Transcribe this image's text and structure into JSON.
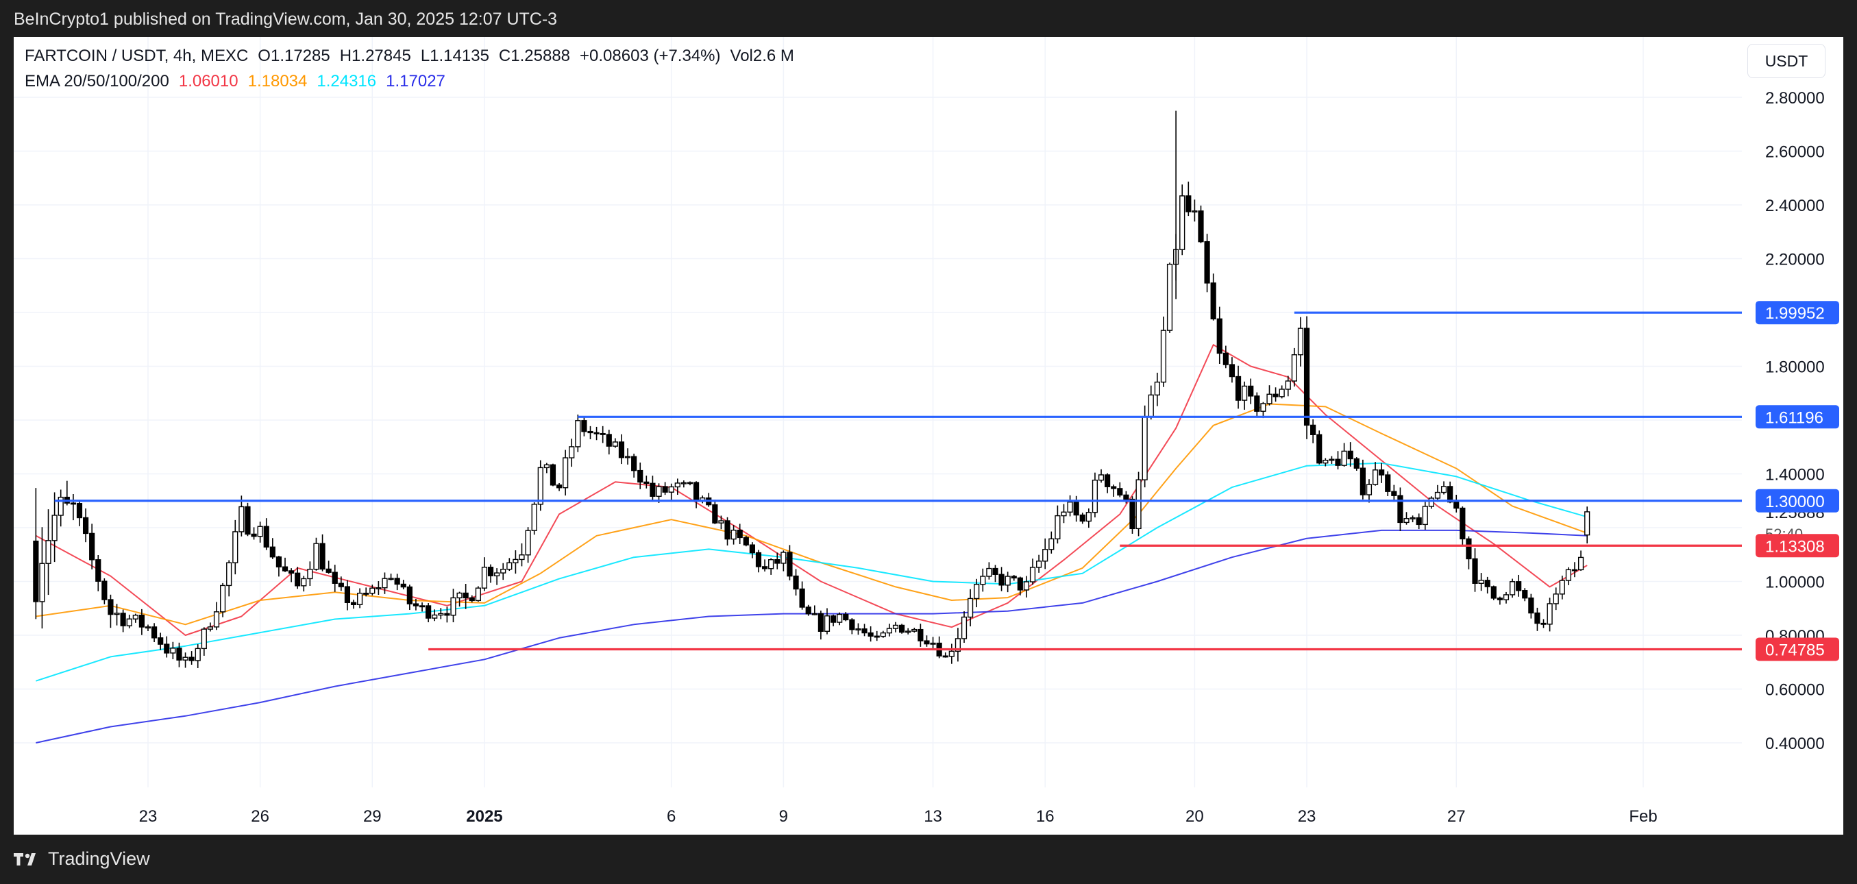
{
  "header": {
    "published": "BeInCrypto1 published on TradingView.com, Jan 30, 2025 12:07 UTC-3"
  },
  "legend": {
    "symbol": "FARTCOIN / USDT, 4h, MEXC",
    "open": "O1.17285",
    "high": "H1.27845",
    "low": "L1.14135",
    "close": "C1.25888",
    "change": "+0.08603 (+7.34%)",
    "volume": "Vol2.6 M",
    "ema_label": "EMA 20/50/100/200",
    "ema_values": [
      {
        "value": "1.06010",
        "color": "#f23645"
      },
      {
        "value": "1.18034",
        "color": "#ff9800"
      },
      {
        "value": "1.24316",
        "color": "#00e5ff"
      },
      {
        "value": "1.17027",
        "color": "#2a2ee8"
      }
    ]
  },
  "axis": {
    "unit": "USDT"
  },
  "footer": {
    "brand": "TradingView"
  },
  "chart_data": {
    "type": "candlestick",
    "title": "",
    "y_ticks": [
      "2.80000",
      "2.60000",
      "2.40000",
      "2.20000",
      "1.80000",
      "1.40000",
      "1.25888",
      "1.00000",
      "0.80000",
      "0.60000",
      "0.40000"
    ],
    "countdown": "52:40",
    "x_ticks": [
      {
        "label": "23",
        "x": "2024-12-23"
      },
      {
        "label": "26",
        "x": "2024-12-26"
      },
      {
        "label": "29",
        "x": "2024-12-29"
      },
      {
        "label": "2025",
        "x": "2025-01-01",
        "bold": true
      },
      {
        "label": "6",
        "x": "2025-01-06"
      },
      {
        "label": "9",
        "x": "2025-01-09"
      },
      {
        "label": "13",
        "x": "2025-01-13"
      },
      {
        "label": "16",
        "x": "2025-01-16"
      },
      {
        "label": "20",
        "x": "2025-01-20"
      },
      {
        "label": "23",
        "x": "2025-01-23"
      },
      {
        "label": "27",
        "x": "2025-01-27"
      },
      {
        "label": "Feb",
        "x": "2025-02-01"
      }
    ],
    "levels": [
      {
        "value": 1.99952,
        "label": "1.99952",
        "color": "#2962ff",
        "from": "2025-01-22T16:00"
      },
      {
        "value": 1.61196,
        "label": "1.61196",
        "color": "#2962ff",
        "from": "2025-01-03T12:00"
      },
      {
        "value": 1.3,
        "label": "1.30000",
        "color": "#2962ff",
        "from": "2024-12-20T12:00"
      },
      {
        "value": 1.13308,
        "label": "1.13308",
        "color": "#f23645",
        "from": "2025-01-18T00:00"
      },
      {
        "value": 0.74785,
        "label": "0.74785",
        "color": "#f23645",
        "from": "2024-12-30T12:00"
      }
    ],
    "last_price": {
      "value": 1.25888,
      "label": "1.25888"
    },
    "anchors": [
      [
        "2024-12-20T00:00",
        1.0,
        1.3
      ],
      [
        "2024-12-20T12:00",
        1.15,
        1.32
      ],
      [
        "2024-12-21T00:00",
        1.22,
        1.31
      ],
      [
        "2024-12-21T12:00",
        1.05,
        1.1
      ],
      [
        "2024-12-22T00:00",
        0.85,
        0.92
      ],
      [
        "2024-12-22T12:00",
        0.84,
        0.88
      ],
      [
        "2024-12-23T00:00",
        0.81,
        0.85
      ],
      [
        "2024-12-23T12:00",
        0.73,
        0.77
      ],
      [
        "2024-12-24T00:00",
        0.66,
        0.71
      ],
      [
        "2024-12-24T12:00",
        0.78,
        0.82
      ],
      [
        "2024-12-25T00:00",
        0.95,
        1.0
      ],
      [
        "2024-12-25T12:00",
        1.2,
        1.27
      ],
      [
        "2024-12-26T00:00",
        1.17,
        1.21
      ],
      [
        "2024-12-26T12:00",
        1.03,
        1.08
      ],
      [
        "2024-12-27T00:00",
        0.96,
        1.0
      ],
      [
        "2024-12-27T12:00",
        1.1,
        1.15
      ],
      [
        "2024-12-28T00:00",
        0.95,
        0.99
      ],
      [
        "2024-12-28T12:00",
        0.9,
        0.94
      ],
      [
        "2024-12-29T00:00",
        0.95,
        0.98
      ],
      [
        "2024-12-29T12:00",
        1.01,
        1.04
      ],
      [
        "2024-12-30T00:00",
        0.9,
        0.94
      ],
      [
        "2024-12-30T12:00",
        0.87,
        0.9
      ],
      [
        "2024-12-31T00:00",
        0.88,
        0.92
      ],
      [
        "2024-12-31T12:00",
        0.9,
        0.96
      ],
      [
        "2025-01-01T00:00",
        1.02,
        1.07
      ],
      [
        "2025-01-01T12:00",
        1.03,
        1.07
      ],
      [
        "2025-01-02T00:00",
        1.1,
        1.16
      ],
      [
        "2025-01-02T12:00",
        1.38,
        1.44
      ],
      [
        "2025-01-03T00:00",
        1.33,
        1.38
      ],
      [
        "2025-01-03T12:00",
        1.56,
        1.6
      ],
      [
        "2025-01-04T00:00",
        1.52,
        1.56
      ],
      [
        "2025-01-04T12:00",
        1.47,
        1.51
      ],
      [
        "2025-01-05T00:00",
        1.41,
        1.45
      ],
      [
        "2025-01-05T12:00",
        1.3,
        1.34
      ],
      [
        "2025-01-06T00:00",
        1.32,
        1.37
      ],
      [
        "2025-01-06T12:00",
        1.3,
        1.36
      ],
      [
        "2025-01-07T00:00",
        1.25,
        1.28
      ],
      [
        "2025-01-07T12:00",
        1.16,
        1.2
      ],
      [
        "2025-01-08T00:00",
        1.11,
        1.15
      ],
      [
        "2025-01-08T12:00",
        1.02,
        1.06
      ],
      [
        "2025-01-09T00:00",
        1.07,
        1.11
      ],
      [
        "2025-01-09T12:00",
        0.86,
        0.9
      ],
      [
        "2025-01-10T00:00",
        0.82,
        0.86
      ],
      [
        "2025-01-10T12:00",
        0.86,
        0.89
      ],
      [
        "2025-01-11T00:00",
        0.81,
        0.84
      ],
      [
        "2025-01-11T12:00",
        0.76,
        0.79
      ],
      [
        "2025-01-12T00:00",
        0.82,
        0.85
      ],
      [
        "2025-01-12T12:00",
        0.8,
        0.83
      ],
      [
        "2025-01-13T00:00",
        0.76,
        0.79
      ],
      [
        "2025-01-13T08:00",
        0.7,
        0.73
      ],
      [
        "2025-01-13T16:00",
        0.78,
        0.84
      ],
      [
        "2025-01-14T00:00",
        0.93,
        0.98
      ],
      [
        "2025-01-14T12:00",
        1.0,
        1.04
      ],
      [
        "2025-01-15T00:00",
        0.98,
        1.02
      ],
      [
        "2025-01-15T12:00",
        0.96,
        1.0
      ],
      [
        "2025-01-16T00:00",
        1.08,
        1.15
      ],
      [
        "2025-01-16T12:00",
        1.25,
        1.31
      ],
      [
        "2025-01-17T00:00",
        1.2,
        1.24
      ],
      [
        "2025-01-17T12:00",
        1.38,
        1.44
      ],
      [
        "2025-01-18T00:00",
        1.3,
        1.36
      ],
      [
        "2025-01-18T08:00",
        1.2,
        1.25
      ],
      [
        "2025-01-18T16:00",
        1.55,
        1.62
      ],
      [
        "2025-01-19T00:00",
        1.7,
        1.76
      ],
      [
        "2025-01-19T08:00",
        2.08,
        2.16
      ],
      [
        "2025-01-19T16:00",
        2.35,
        2.45
      ],
      [
        "2025-01-20T00:00",
        2.3,
        2.38
      ],
      [
        "2025-01-20T08:00",
        2.05,
        2.12
      ],
      [
        "2025-01-20T16:00",
        1.8,
        1.86
      ],
      [
        "2025-01-21T00:00",
        1.72,
        1.78
      ],
      [
        "2025-01-21T12:00",
        1.62,
        1.68
      ],
      [
        "2025-01-22T00:00",
        1.65,
        1.7
      ],
      [
        "2025-01-22T12:00",
        1.73,
        1.78
      ],
      [
        "2025-01-22T20:00",
        1.9,
        1.96
      ],
      [
        "2025-01-23T00:00",
        1.55,
        1.62
      ],
      [
        "2025-01-23T12:00",
        1.4,
        1.45
      ],
      [
        "2025-01-24T00:00",
        1.45,
        1.5
      ],
      [
        "2025-01-24T12:00",
        1.33,
        1.37
      ],
      [
        "2025-01-25T00:00",
        1.4,
        1.45
      ],
      [
        "2025-01-25T12:00",
        1.22,
        1.26
      ],
      [
        "2025-01-26T00:00",
        1.18,
        1.22
      ],
      [
        "2025-01-26T12:00",
        1.33,
        1.37
      ],
      [
        "2025-01-27T00:00",
        1.25,
        1.29
      ],
      [
        "2025-01-27T08:00",
        1.06,
        1.12
      ],
      [
        "2025-01-27T16:00",
        0.95,
        1.0
      ],
      [
        "2025-01-28T00:00",
        0.92,
        0.96
      ],
      [
        "2025-01-28T12:00",
        0.97,
        1.01
      ],
      [
        "2025-01-29T00:00",
        0.86,
        0.9
      ],
      [
        "2025-01-29T08:00",
        0.8,
        0.84
      ],
      [
        "2025-01-29T16:00",
        0.95,
        0.98
      ],
      [
        "2025-01-30T00:00",
        1.0,
        1.04
      ],
      [
        "2025-01-30T08:00",
        1.05,
        1.1
      ],
      [
        "2025-01-30T12:00",
        1.17,
        1.26
      ]
    ],
    "ema": [
      {
        "name": "EMA 20",
        "color": "#f23645",
        "points": [
          [
            "2024-12-20T00:00",
            1.17
          ],
          [
            "2024-12-22T00:00",
            1.02
          ],
          [
            "2024-12-24T00:00",
            0.8
          ],
          [
            "2024-12-25T12:00",
            0.87
          ],
          [
            "2024-12-27T00:00",
            1.05
          ],
          [
            "2024-12-29T00:00",
            0.98
          ],
          [
            "2024-12-31T00:00",
            0.91
          ],
          [
            "2025-01-02T00:00",
            1.0
          ],
          [
            "2025-01-03T00:00",
            1.25
          ],
          [
            "2025-01-04T12:00",
            1.37
          ],
          [
            "2025-01-06T00:00",
            1.35
          ],
          [
            "2025-01-08T00:00",
            1.18
          ],
          [
            "2025-01-10T00:00",
            1.0
          ],
          [
            "2025-01-12T00:00",
            0.88
          ],
          [
            "2025-01-13T12:00",
            0.83
          ],
          [
            "2025-01-15T00:00",
            0.92
          ],
          [
            "2025-01-16T12:00",
            1.08
          ],
          [
            "2025-01-18T00:00",
            1.25
          ],
          [
            "2025-01-19T12:00",
            1.57
          ],
          [
            "2025-01-20T12:00",
            1.88
          ],
          [
            "2025-01-21T12:00",
            1.8
          ],
          [
            "2025-01-22T12:00",
            1.76
          ],
          [
            "2025-01-23T12:00",
            1.62
          ],
          [
            "2025-01-25T00:00",
            1.45
          ],
          [
            "2025-01-26T12:00",
            1.28
          ],
          [
            "2025-01-28T00:00",
            1.14
          ],
          [
            "2025-01-29T12:00",
            0.98
          ],
          [
            "2025-01-30T12:00",
            1.06
          ]
        ]
      },
      {
        "name": "EMA 50",
        "color": "#ff9800",
        "points": [
          [
            "2024-12-20T00:00",
            0.87
          ],
          [
            "2024-12-22T00:00",
            0.91
          ],
          [
            "2024-12-24T00:00",
            0.84
          ],
          [
            "2024-12-26T00:00",
            0.93
          ],
          [
            "2024-12-28T00:00",
            0.96
          ],
          [
            "2024-12-30T00:00",
            0.93
          ],
          [
            "2025-01-01T00:00",
            0.92
          ],
          [
            "2025-01-02T12:00",
            1.03
          ],
          [
            "2025-01-04T00:00",
            1.17
          ],
          [
            "2025-01-06T00:00",
            1.23
          ],
          [
            "2025-01-08T00:00",
            1.17
          ],
          [
            "2025-01-10T00:00",
            1.07
          ],
          [
            "2025-01-12T00:00",
            0.98
          ],
          [
            "2025-01-13T12:00",
            0.93
          ],
          [
            "2025-01-15T00:00",
            0.94
          ],
          [
            "2025-01-17T00:00",
            1.05
          ],
          [
            "2025-01-18T12:00",
            1.25
          ],
          [
            "2025-01-19T12:00",
            1.42
          ],
          [
            "2025-01-20T12:00",
            1.58
          ],
          [
            "2025-01-22T00:00",
            1.66
          ],
          [
            "2025-01-23T12:00",
            1.65
          ],
          [
            "2025-01-25T00:00",
            1.55
          ],
          [
            "2025-01-27T00:00",
            1.42
          ],
          [
            "2025-01-28T12:00",
            1.28
          ],
          [
            "2025-01-30T12:00",
            1.18
          ]
        ]
      },
      {
        "name": "EMA 100",
        "color": "#00e5ff",
        "points": [
          [
            "2024-12-20T00:00",
            0.63
          ],
          [
            "2024-12-22T00:00",
            0.72
          ],
          [
            "2024-12-24T00:00",
            0.76
          ],
          [
            "2024-12-26T00:00",
            0.81
          ],
          [
            "2024-12-28T00:00",
            0.86
          ],
          [
            "2024-12-30T00:00",
            0.88
          ],
          [
            "2025-01-01T00:00",
            0.91
          ],
          [
            "2025-01-03T00:00",
            1.01
          ],
          [
            "2025-01-05T00:00",
            1.09
          ],
          [
            "2025-01-07T00:00",
            1.12
          ],
          [
            "2025-01-09T00:00",
            1.09
          ],
          [
            "2025-01-11T00:00",
            1.05
          ],
          [
            "2025-01-13T00:00",
            1.0
          ],
          [
            "2025-01-15T00:00",
            0.99
          ],
          [
            "2025-01-17T00:00",
            1.03
          ],
          [
            "2025-01-19T00:00",
            1.2
          ],
          [
            "2025-01-21T00:00",
            1.35
          ],
          [
            "2025-01-23T00:00",
            1.43
          ],
          [
            "2025-01-25T00:00",
            1.44
          ],
          [
            "2025-01-27T00:00",
            1.39
          ],
          [
            "2025-01-29T00:00",
            1.3
          ],
          [
            "2025-01-30T12:00",
            1.24
          ]
        ]
      },
      {
        "name": "EMA 200",
        "color": "#2a2ee8",
        "points": [
          [
            "2024-12-20T00:00",
            0.4
          ],
          [
            "2024-12-22T00:00",
            0.46
          ],
          [
            "2024-12-24T00:00",
            0.5
          ],
          [
            "2024-12-26T00:00",
            0.55
          ],
          [
            "2024-12-28T00:00",
            0.61
          ],
          [
            "2024-12-30T00:00",
            0.66
          ],
          [
            "2025-01-01T00:00",
            0.71
          ],
          [
            "2025-01-03T00:00",
            0.79
          ],
          [
            "2025-01-05T00:00",
            0.84
          ],
          [
            "2025-01-07T00:00",
            0.87
          ],
          [
            "2025-01-09T00:00",
            0.88
          ],
          [
            "2025-01-11T00:00",
            0.88
          ],
          [
            "2025-01-13T00:00",
            0.88
          ],
          [
            "2025-01-15T00:00",
            0.89
          ],
          [
            "2025-01-17T00:00",
            0.92
          ],
          [
            "2025-01-19T00:00",
            1.0
          ],
          [
            "2025-01-21T00:00",
            1.09
          ],
          [
            "2025-01-23T00:00",
            1.16
          ],
          [
            "2025-01-25T00:00",
            1.19
          ],
          [
            "2025-01-27T00:00",
            1.19
          ],
          [
            "2025-01-29T00:00",
            1.18
          ],
          [
            "2025-01-30T12:00",
            1.17
          ]
        ]
      }
    ]
  }
}
